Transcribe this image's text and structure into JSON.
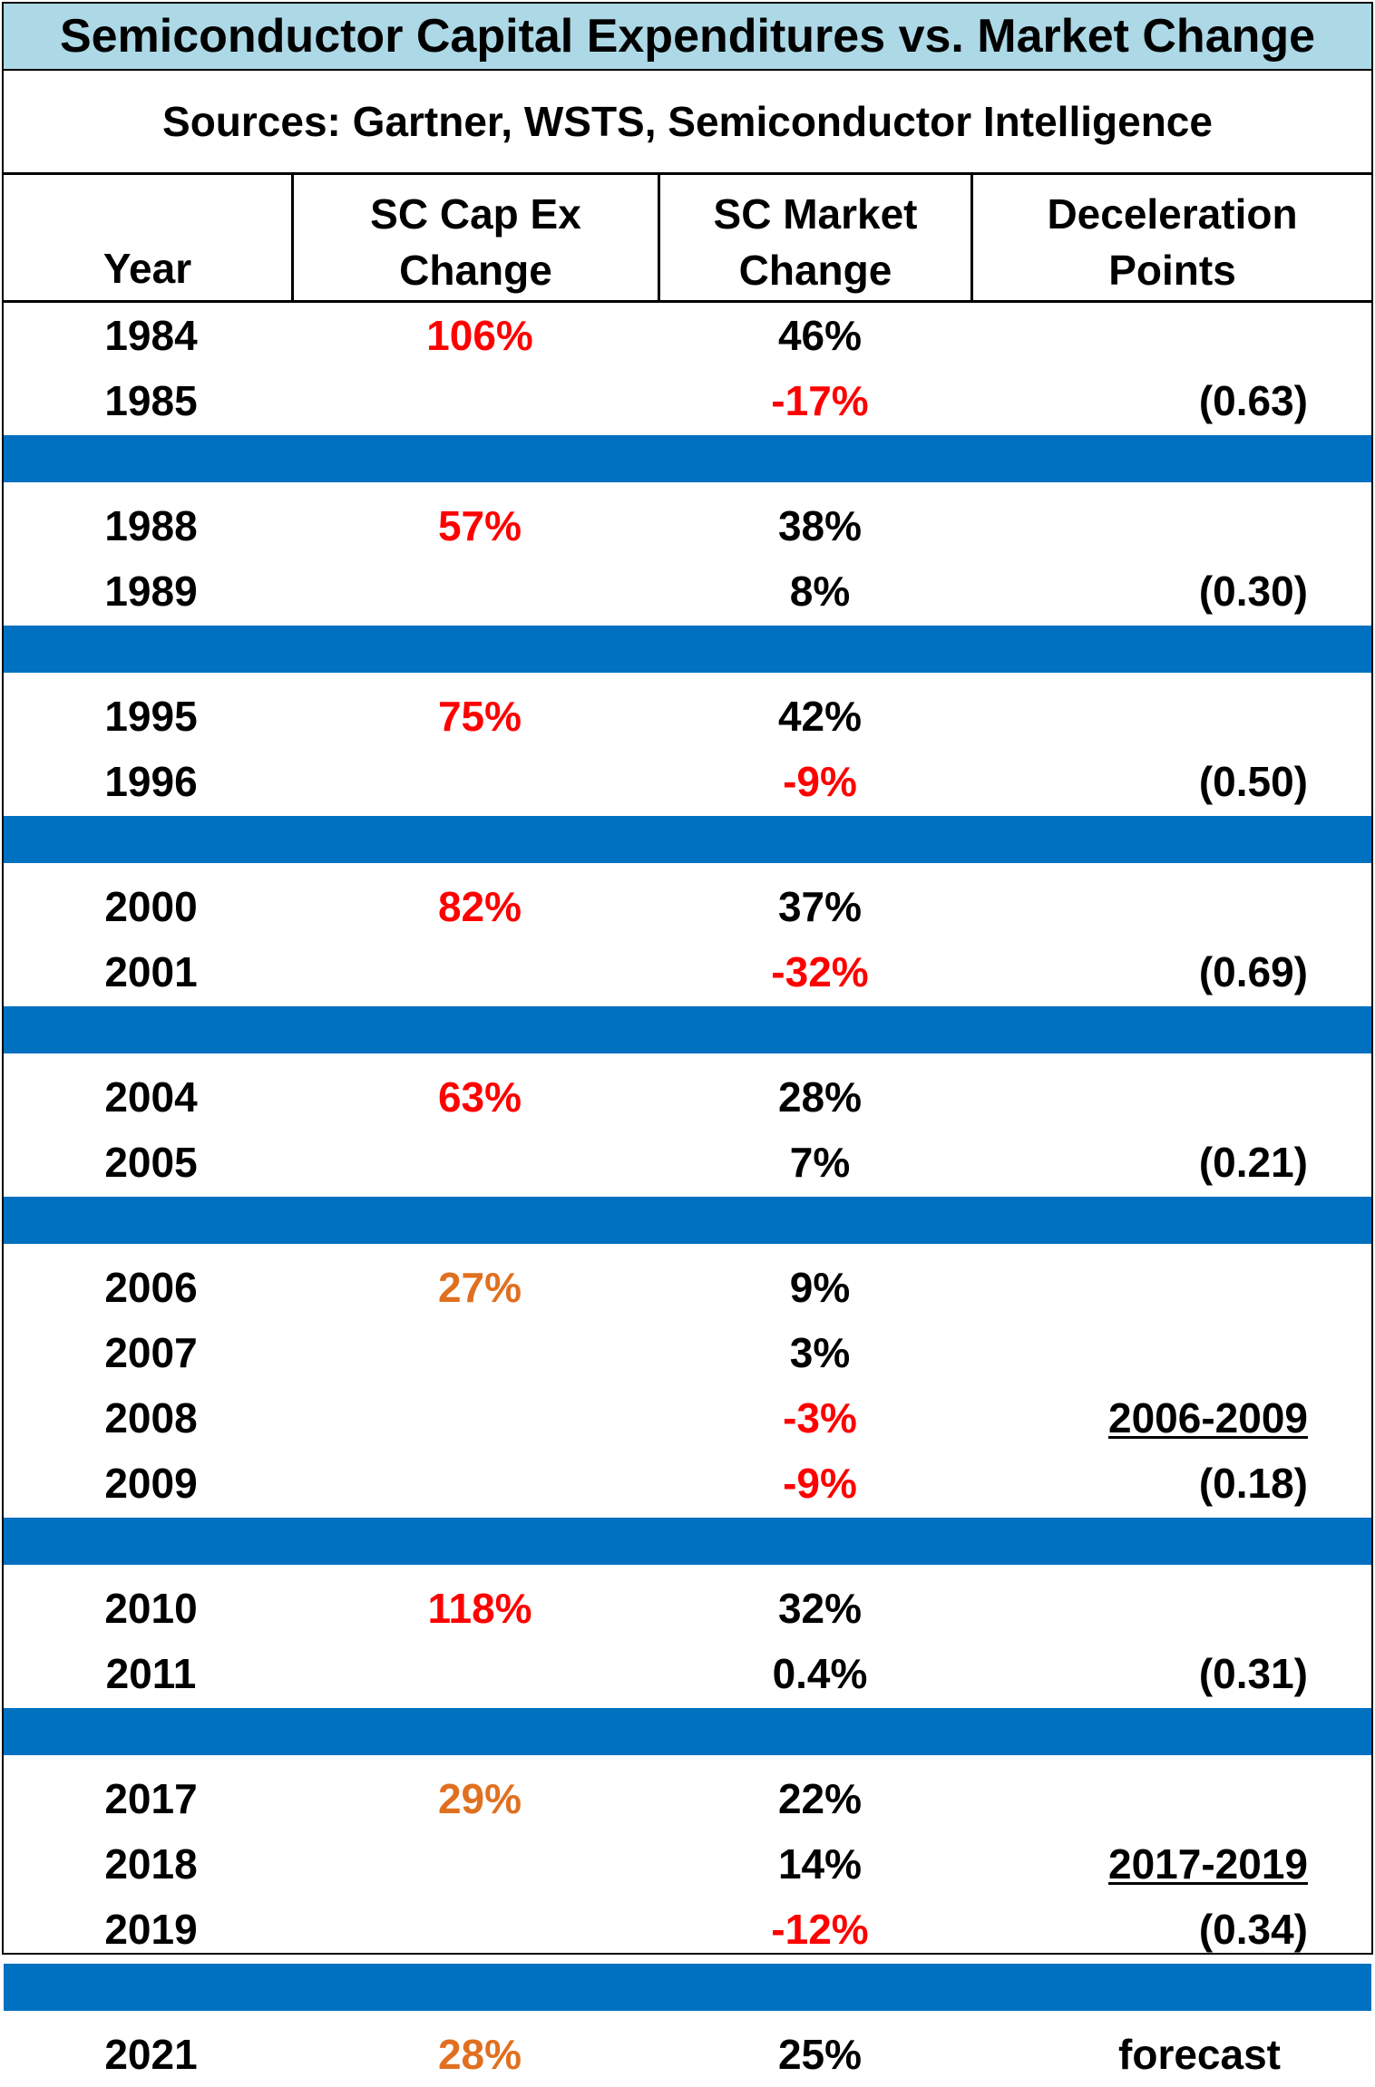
{
  "title": "Semiconductor Capital Expenditures vs. Market Change",
  "subtitle": "Sources: Gartner, WSTS, Semiconductor Intelligence",
  "headers": {
    "year": "Year",
    "capex_line1": "SC Cap Ex",
    "capex_line2": "Change",
    "market_line1": "SC Market",
    "market_line2": "Change",
    "decel_line1": "Deceleration",
    "decel_line2": "Points"
  },
  "colors": {
    "title_bg": "#add8e6",
    "separator": "#0070c0",
    "red": "#ff0000",
    "orange": "#e07020"
  },
  "groups": [
    {
      "rows": [
        {
          "year": "1984",
          "capex": "106%",
          "capex_color": "red",
          "market": "46%",
          "market_color": "black",
          "decel": ""
        },
        {
          "year": "1985",
          "capex": "",
          "market": "-17%",
          "market_color": "red",
          "decel": "(0.63)"
        }
      ]
    },
    {
      "rows": [
        {
          "year": "1988",
          "capex": "57%",
          "capex_color": "red",
          "market": "38%",
          "market_color": "black",
          "decel": ""
        },
        {
          "year": "1989",
          "capex": "",
          "market": "8%",
          "market_color": "black",
          "decel": "(0.30)"
        }
      ]
    },
    {
      "rows": [
        {
          "year": "1995",
          "capex": "75%",
          "capex_color": "red",
          "market": "42%",
          "market_color": "black",
          "decel": ""
        },
        {
          "year": "1996",
          "capex": "",
          "market": "-9%",
          "market_color": "red",
          "decel": "(0.50)"
        }
      ]
    },
    {
      "rows": [
        {
          "year": "2000",
          "capex": "82%",
          "capex_color": "red",
          "market": "37%",
          "market_color": "black",
          "decel": ""
        },
        {
          "year": "2001",
          "capex": "",
          "market": "-32%",
          "market_color": "red",
          "decel": "(0.69)"
        }
      ]
    },
    {
      "rows": [
        {
          "year": "2004",
          "capex": "63%",
          "capex_color": "red",
          "market": "28%",
          "market_color": "black",
          "decel": ""
        },
        {
          "year": "2005",
          "capex": "",
          "market": "7%",
          "market_color": "black",
          "decel": "(0.21)"
        }
      ]
    },
    {
      "rows": [
        {
          "year": "2006",
          "capex": "27%",
          "capex_color": "orange",
          "market": "9%",
          "market_color": "black",
          "decel": ""
        },
        {
          "year": "2007",
          "capex": "",
          "market": "3%",
          "market_color": "black",
          "decel": ""
        },
        {
          "year": "2008",
          "capex": "",
          "market": "-3%",
          "market_color": "red",
          "decel": "2006-2009",
          "decel_underline": true
        },
        {
          "year": "2009",
          "capex": "",
          "market": "-9%",
          "market_color": "red",
          "decel": "(0.18)"
        }
      ]
    },
    {
      "rows": [
        {
          "year": "2010",
          "capex": "118%",
          "capex_color": "red",
          "market": "32%",
          "market_color": "black",
          "decel": ""
        },
        {
          "year": "2011",
          "capex": "",
          "market": "0.4%",
          "market_color": "black",
          "decel": "(0.31)"
        }
      ]
    },
    {
      "rows": [
        {
          "year": "2017",
          "capex": "29%",
          "capex_color": "orange",
          "market": "22%",
          "market_color": "black",
          "decel": ""
        },
        {
          "year": "2018",
          "capex": "",
          "market": "14%",
          "market_color": "black",
          "decel": "2017-2019",
          "decel_underline": true
        },
        {
          "year": "2019",
          "capex": "",
          "market": "-12%",
          "market_color": "red",
          "decel": "(0.34)"
        }
      ]
    },
    {
      "rows": [
        {
          "year": "2021",
          "capex": "28%",
          "capex_color": "orange",
          "market": "25%",
          "market_color": "black",
          "decel": "forecast",
          "decel_forecast": true
        }
      ]
    }
  ]
}
